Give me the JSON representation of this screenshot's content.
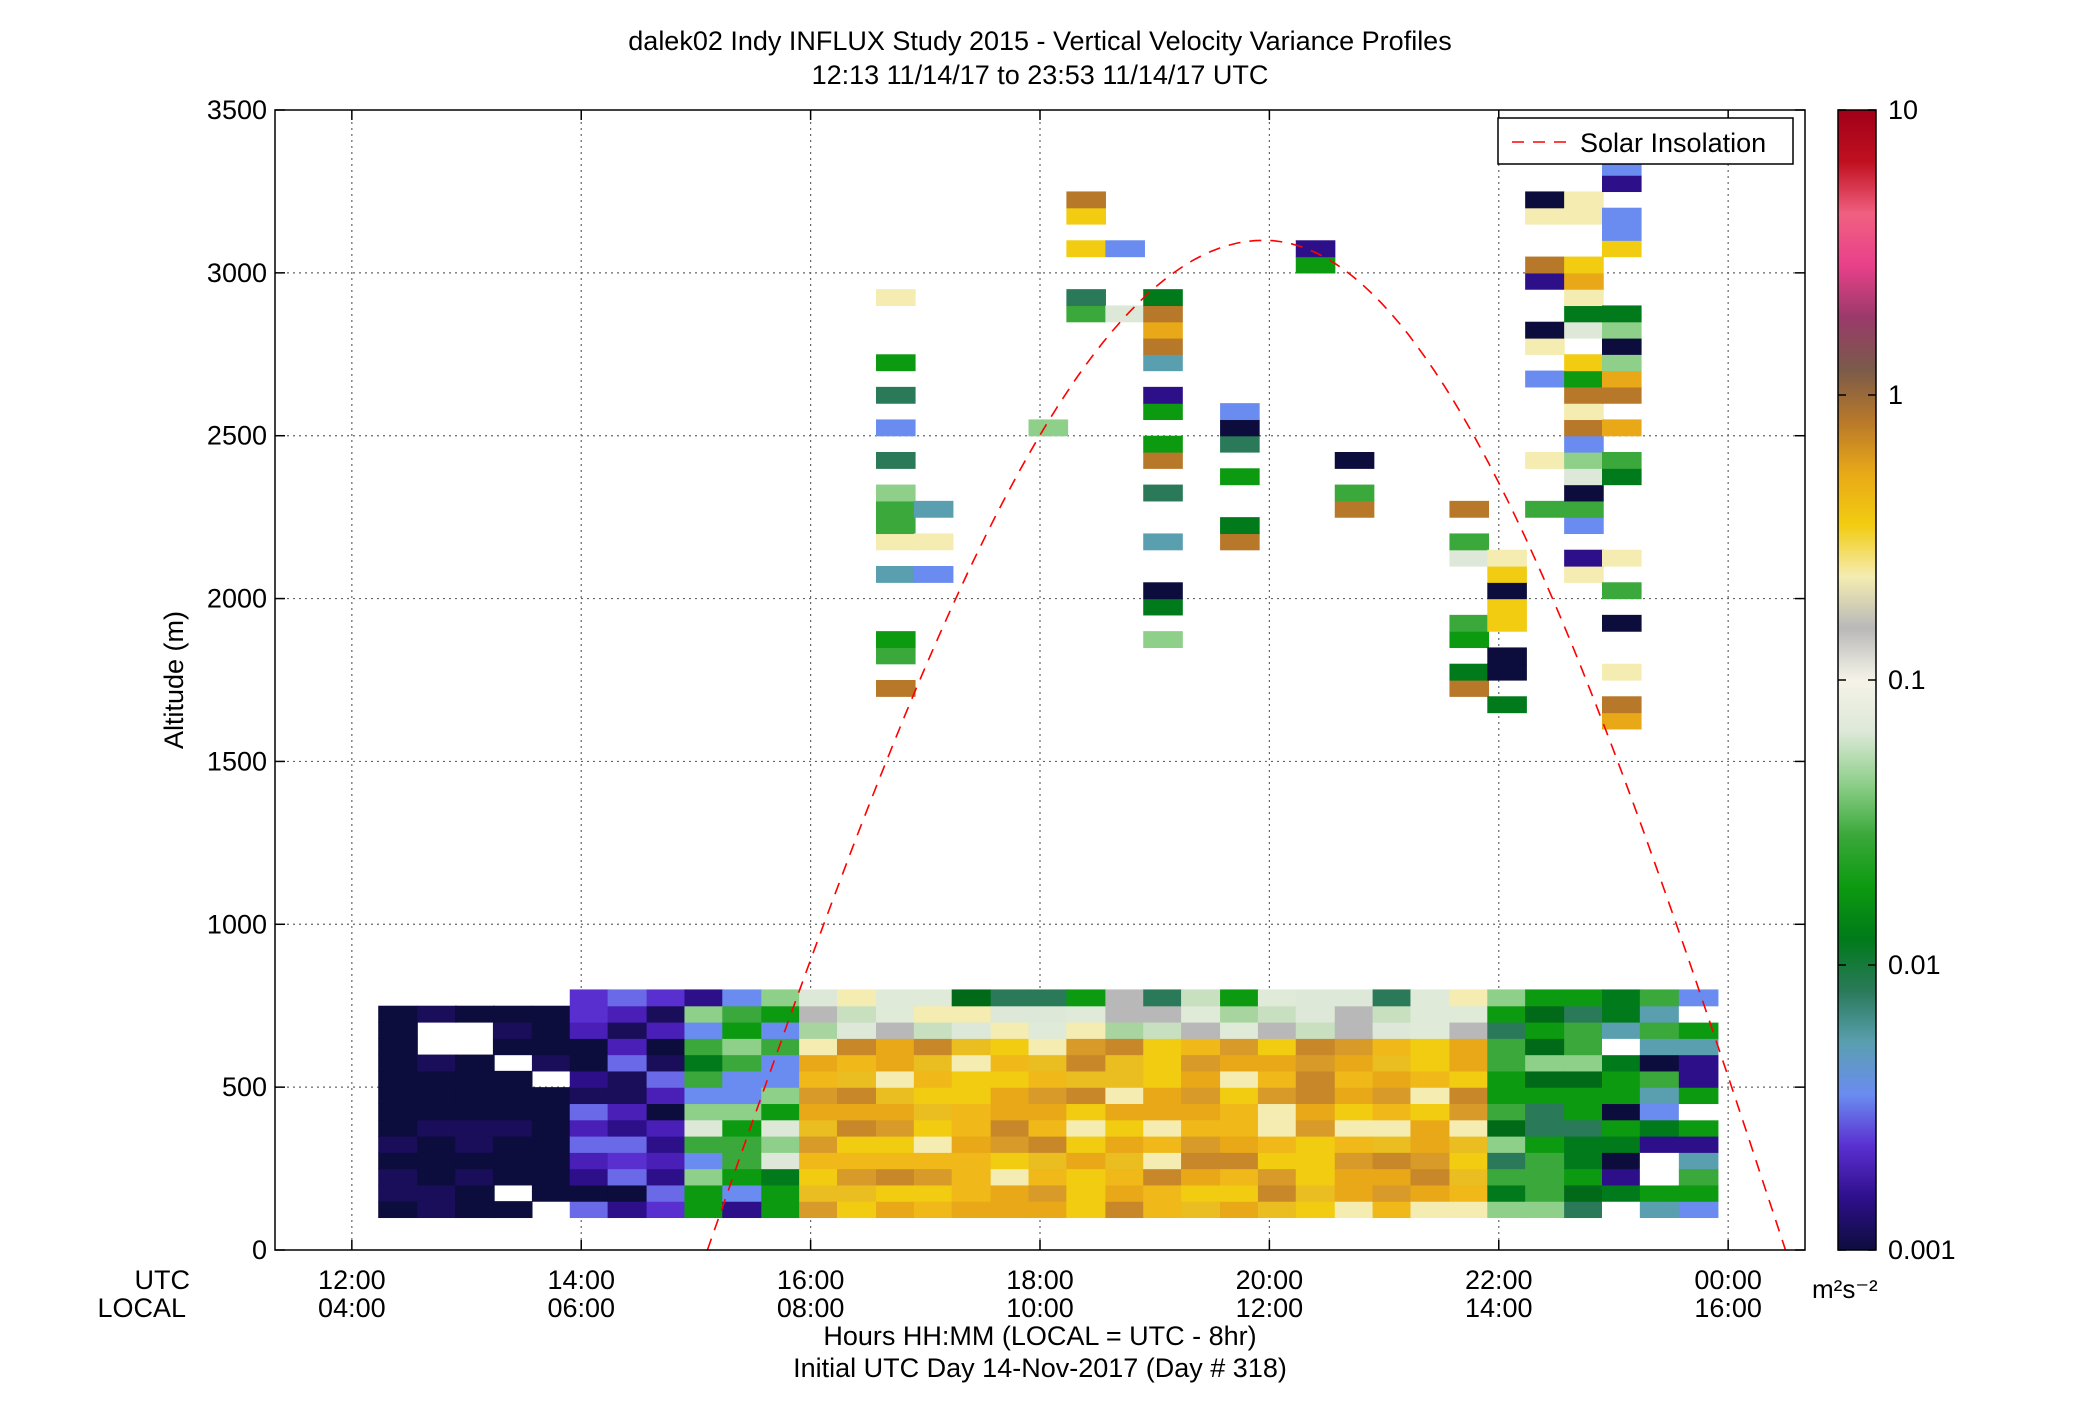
{
  "title_line1": "dalek02 Indy INFLUX Study 2015 - Vertical Velocity Variance Profiles",
  "title_line2": "12:13 11/14/17 to 23:53 11/14/17  UTC",
  "ylabel": "Altitude (m)",
  "xlabel_line1": "Hours HH:MM  (LOCAL = UTC - 8hr)",
  "xlabel_line2": "Initial UTC Day 14-Nov-2017 (Day # 318)",
  "row_labels": {
    "utc": "UTC",
    "local": "LOCAL"
  },
  "legend": {
    "label": "Solar Insolation",
    "color": "#ff0000"
  },
  "colorbar": {
    "unit": "m²s⁻²",
    "ticks": [
      "10",
      "1",
      "0.1",
      "0.01",
      "0.001"
    ],
    "stops": [
      "#0d0d3d",
      "#2e0f8a",
      "#5a2fd0",
      "#6a8cf0",
      "#5a9fb0",
      "#2a7a5a",
      "#007a1a",
      "#0c9a10",
      "#3aa83a",
      "#8ecf8a",
      "#dde8d8",
      "#f5f3e8",
      "#b8b8b8",
      "#f4ecb0",
      "#f2cc10",
      "#e8a818",
      "#b8782a",
      "#7a5a4a",
      "#9a3a6a",
      "#e8408a",
      "#f06080",
      "#c01020",
      "#a00018"
    ]
  },
  "chart_data": {
    "type": "heatmap",
    "title": "dalek02 Indy INFLUX Study 2015 - Vertical Velocity Variance Profiles",
    "subtitle": "12:13 11/14/17 to 23:53 11/14/17  UTC",
    "ylabel": "Altitude (m)",
    "xlabel": "Hours HH:MM  (LOCAL = UTC - 8hr)",
    "ylim": [
      0,
      3500
    ],
    "yticks": [
      0,
      500,
      1000,
      1500,
      2000,
      2500,
      3000,
      3500
    ],
    "xlim_hours_utc": [
      11.33,
      24.67
    ],
    "xticks_utc": [
      "12:00",
      "14:00",
      "16:00",
      "18:00",
      "20:00",
      "22:00",
      "00:00"
    ],
    "xticks_local": [
      "04:00",
      "06:00",
      "08:00",
      "10:00",
      "12:00",
      "14:00",
      "16:00"
    ],
    "grid": true,
    "legend_position": "top-right",
    "colorbar_scale": "log",
    "clim": [
      0.001,
      10
    ],
    "solar_insolation": {
      "start_hour": 15.1,
      "peak_hour": 19.95,
      "end_hour": 24.5,
      "peak_altitude": 3100
    },
    "profile_start_hours": [
      12.23,
      12.57,
      12.9,
      13.23,
      13.57,
      13.9,
      14.23,
      14.57,
      14.9,
      15.23,
      15.57,
      15.9,
      16.23,
      16.57,
      16.9,
      17.23,
      17.57,
      17.9,
      18.23,
      18.57,
      18.9,
      19.23,
      19.57,
      19.9,
      20.23,
      20.57,
      20.9,
      21.23,
      21.57,
      21.9,
      22.23,
      22.57,
      22.9,
      23.23,
      23.57
    ],
    "bin_height_m": 50,
    "low_level_profiles": [
      {
        "hour": 12.23,
        "tops_m": 750,
        "class": "very-low"
      },
      {
        "hour": 13.57,
        "tops_m": 800,
        "class": "very-low"
      },
      {
        "hour": 14.9,
        "tops_m": 800,
        "class": "low-mixed"
      },
      {
        "hour": 15.9,
        "tops_m": 800,
        "class": "high"
      },
      {
        "hour": 17.9,
        "tops_m": 750,
        "class": "high"
      },
      {
        "hour": 19.9,
        "tops_m": 750,
        "class": "high"
      },
      {
        "hour": 21.9,
        "tops_m": 800,
        "class": "high-mixed"
      },
      {
        "hour": 22.9,
        "tops_m": 800,
        "class": "medium-mixed"
      }
    ]
  }
}
